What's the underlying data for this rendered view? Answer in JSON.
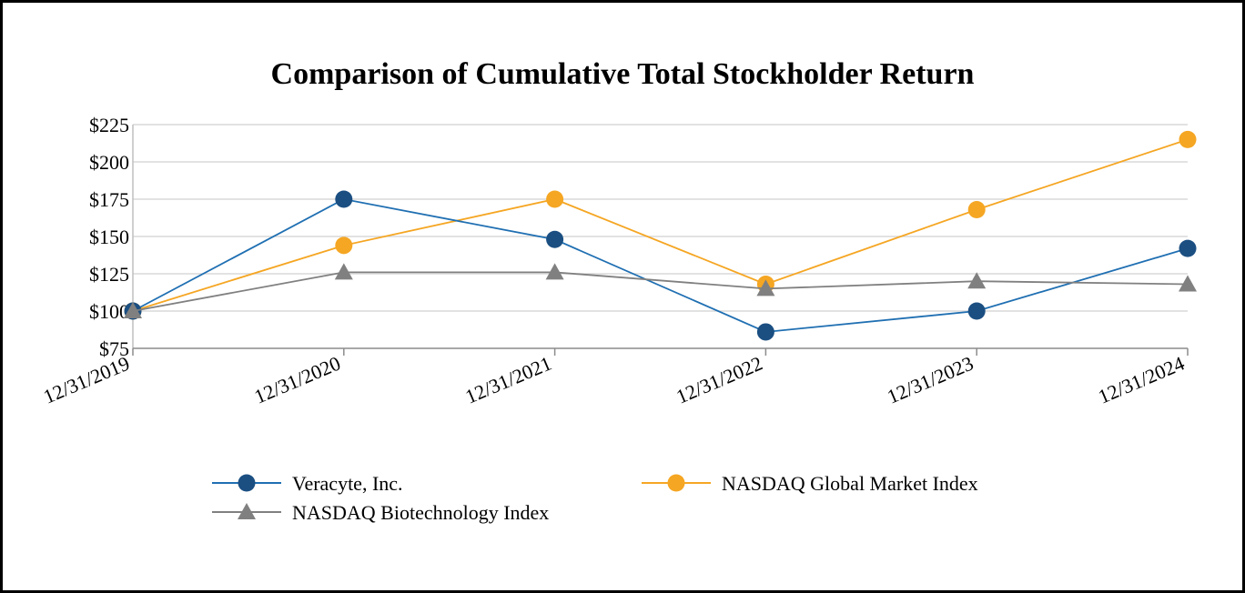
{
  "chart_data": {
    "type": "line",
    "title": "Comparison of Cumulative Total Stockholder Return",
    "xlabel": "",
    "ylabel": "",
    "categories": [
      "12/31/2019",
      "12/31/2020",
      "12/31/2021",
      "12/31/2022",
      "12/31/2023",
      "12/31/2024"
    ],
    "ylim": [
      75,
      225
    ],
    "yticks": [
      75,
      100,
      125,
      150,
      175,
      200,
      225
    ],
    "ytick_labels": [
      "$75",
      "$100",
      "$125",
      "$150",
      "$175",
      "$200",
      "$225"
    ],
    "grid": true,
    "legend_position": "bottom",
    "series": [
      {
        "name": "Veracyte, Inc.",
        "color": "#1F6FB2",
        "marker_color": "#1B4F82",
        "marker": "circle",
        "values": [
          100,
          175,
          148,
          86,
          100,
          142
        ]
      },
      {
        "name": "NASDAQ Global Market Index",
        "color": "#F5A623",
        "marker_color": "#F5A623",
        "marker": "circle",
        "values": [
          100,
          144,
          175,
          118,
          168,
          215
        ]
      },
      {
        "name": "NASDAQ Biotechnology Index",
        "color": "#808080",
        "marker_color": "#808080",
        "marker": "triangle",
        "values": [
          100,
          126,
          126,
          115,
          120,
          118
        ]
      }
    ]
  }
}
